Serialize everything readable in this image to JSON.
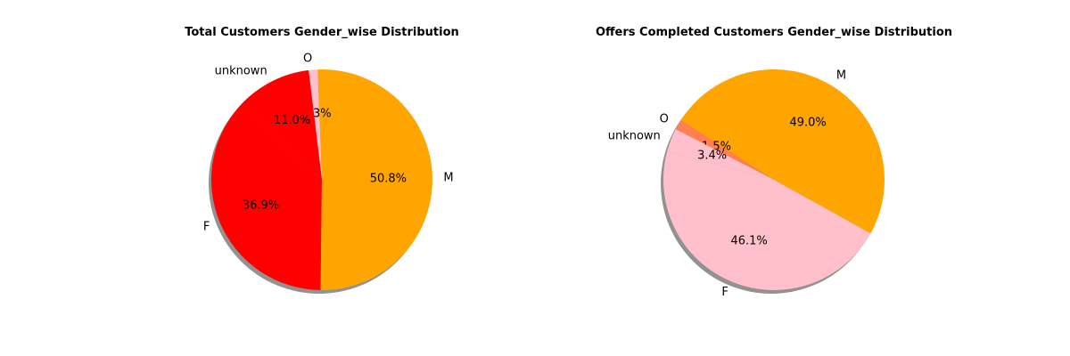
{
  "chart_data": [
    {
      "type": "pie",
      "title": "Total Customers Gender_wise Distribution",
      "start_angle_deg": 136.5,
      "shadow": true,
      "slices": [
        {
          "label": "F",
          "value": 36.9,
          "pct_label": "36.9%",
          "color": "#ff0000"
        },
        {
          "label": "M",
          "value": 50.8,
          "pct_label": "50.8%",
          "color": "#ffa500"
        },
        {
          "label": "O",
          "value": 1.3,
          "pct_label": "1.3%",
          "color": "#ffc0cb"
        },
        {
          "label": "unknown",
          "value": 11.0,
          "pct_label": "11.0%",
          "color": "#ff0000"
        }
      ]
    },
    {
      "type": "pie",
      "title": "Offers Completed Customers Gender_wise Distribution",
      "start_angle_deg": 165,
      "shadow": true,
      "slices": [
        {
          "label": "F",
          "value": 46.1,
          "pct_label": "46.1%",
          "color": "#ffc0cb"
        },
        {
          "label": "M",
          "value": 49.0,
          "pct_label": "49.0%",
          "color": "#ffa500"
        },
        {
          "label": "O",
          "value": 1.5,
          "pct_label": "1.5%",
          "color": "#ff7f50"
        },
        {
          "label": "unknown",
          "value": 3.4,
          "pct_label": "3.4%",
          "color": "#ffc0cb"
        }
      ]
    }
  ]
}
